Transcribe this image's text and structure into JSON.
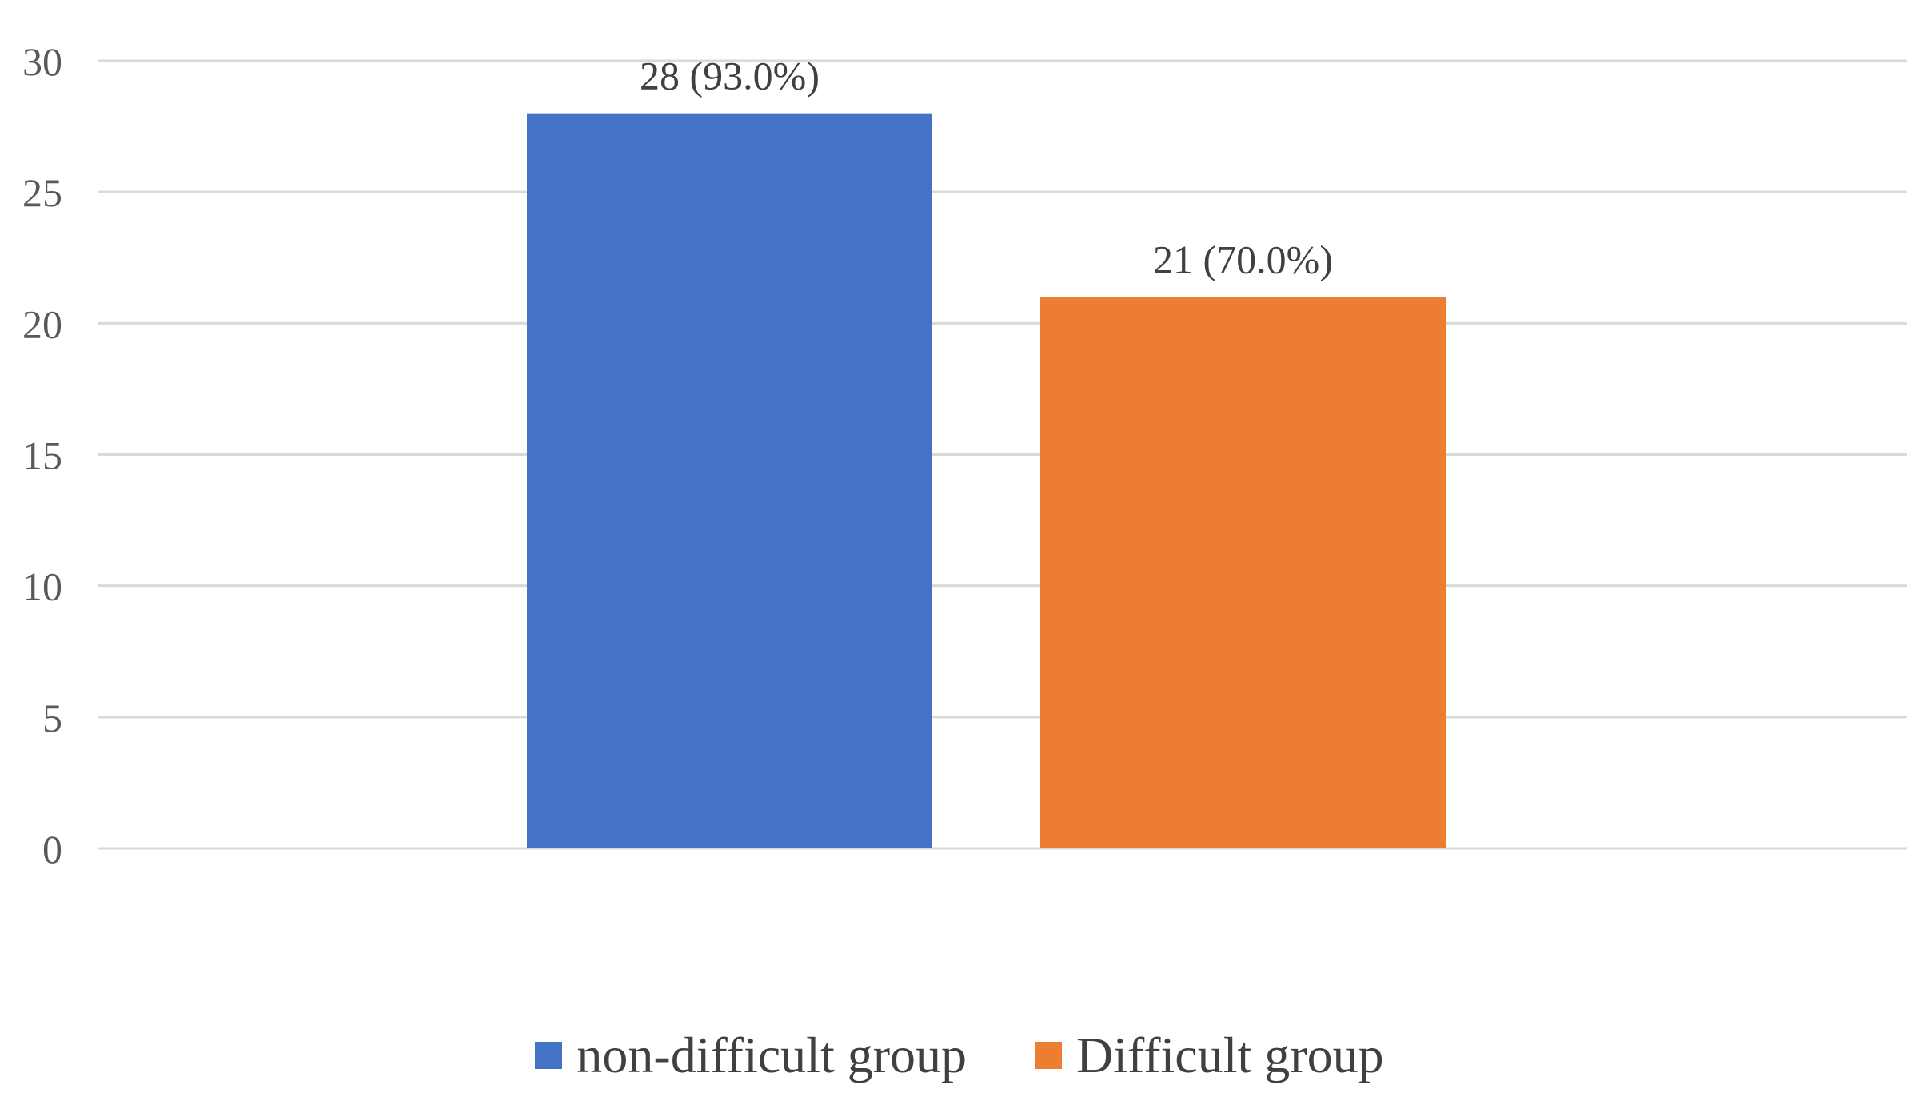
{
  "chart_data": {
    "type": "bar",
    "title": "",
    "xlabel": "",
    "ylabel": "",
    "categories": [
      ""
    ],
    "series": [
      {
        "name": "non-difficult group",
        "values": [
          28
        ],
        "labels": [
          "28 (93.0%)"
        ],
        "color": "#4472C4"
      },
      {
        "name": "Difficult group",
        "values": [
          21
        ],
        "labels": [
          "21 (70.0%)"
        ],
        "color": "#ED7D31"
      }
    ],
    "ylim": [
      0,
      30
    ],
    "yticks": [
      0,
      5,
      10,
      15,
      20,
      25,
      30
    ],
    "grid": true,
    "legend_position": "bottom"
  }
}
